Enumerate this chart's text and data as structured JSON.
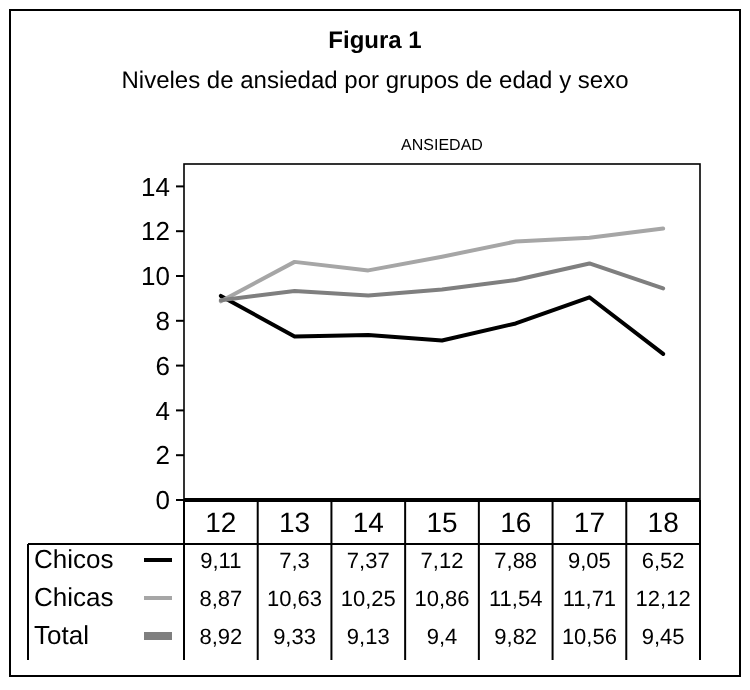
{
  "chart_data": {
    "type": "line",
    "title": "Figura 1",
    "subtitle": "Niveles de ansiedad por grupos de edad y sexo",
    "annotations": [
      "ANSIEDAD"
    ],
    "categories": [
      "12",
      "13",
      "14",
      "15",
      "16",
      "17",
      "18"
    ],
    "series": [
      {
        "name": "Chicos",
        "color": "#000000",
        "values": [
          9.11,
          7.3,
          7.37,
          7.12,
          7.88,
          9.05,
          6.52
        ],
        "value_labels": [
          "9,11",
          "7,3",
          "7,37",
          "7,12",
          "7,88",
          "9,05",
          "6,52"
        ]
      },
      {
        "name": "Chicas",
        "color": "#a6a6a6",
        "values": [
          8.87,
          10.63,
          10.25,
          10.86,
          11.54,
          11.71,
          12.12
        ],
        "value_labels": [
          "8,87",
          "10,63",
          "10,25",
          "10,86",
          "11,54",
          "11,71",
          "12,12"
        ]
      },
      {
        "name": "Total",
        "color": "#7f7f7f",
        "values": [
          8.92,
          9.33,
          9.13,
          9.4,
          9.82,
          10.56,
          9.45
        ],
        "value_labels": [
          "8,92",
          "9,33",
          "9,13",
          "9,4",
          "9,82",
          "10,56",
          "9,45"
        ]
      }
    ],
    "ylim": [
      0,
      15
    ],
    "yticks": [
      0,
      2,
      4,
      6,
      8,
      10,
      12,
      14
    ],
    "grid": false,
    "legend": "bottom left",
    "marker": "none",
    "line_style": "solid"
  }
}
